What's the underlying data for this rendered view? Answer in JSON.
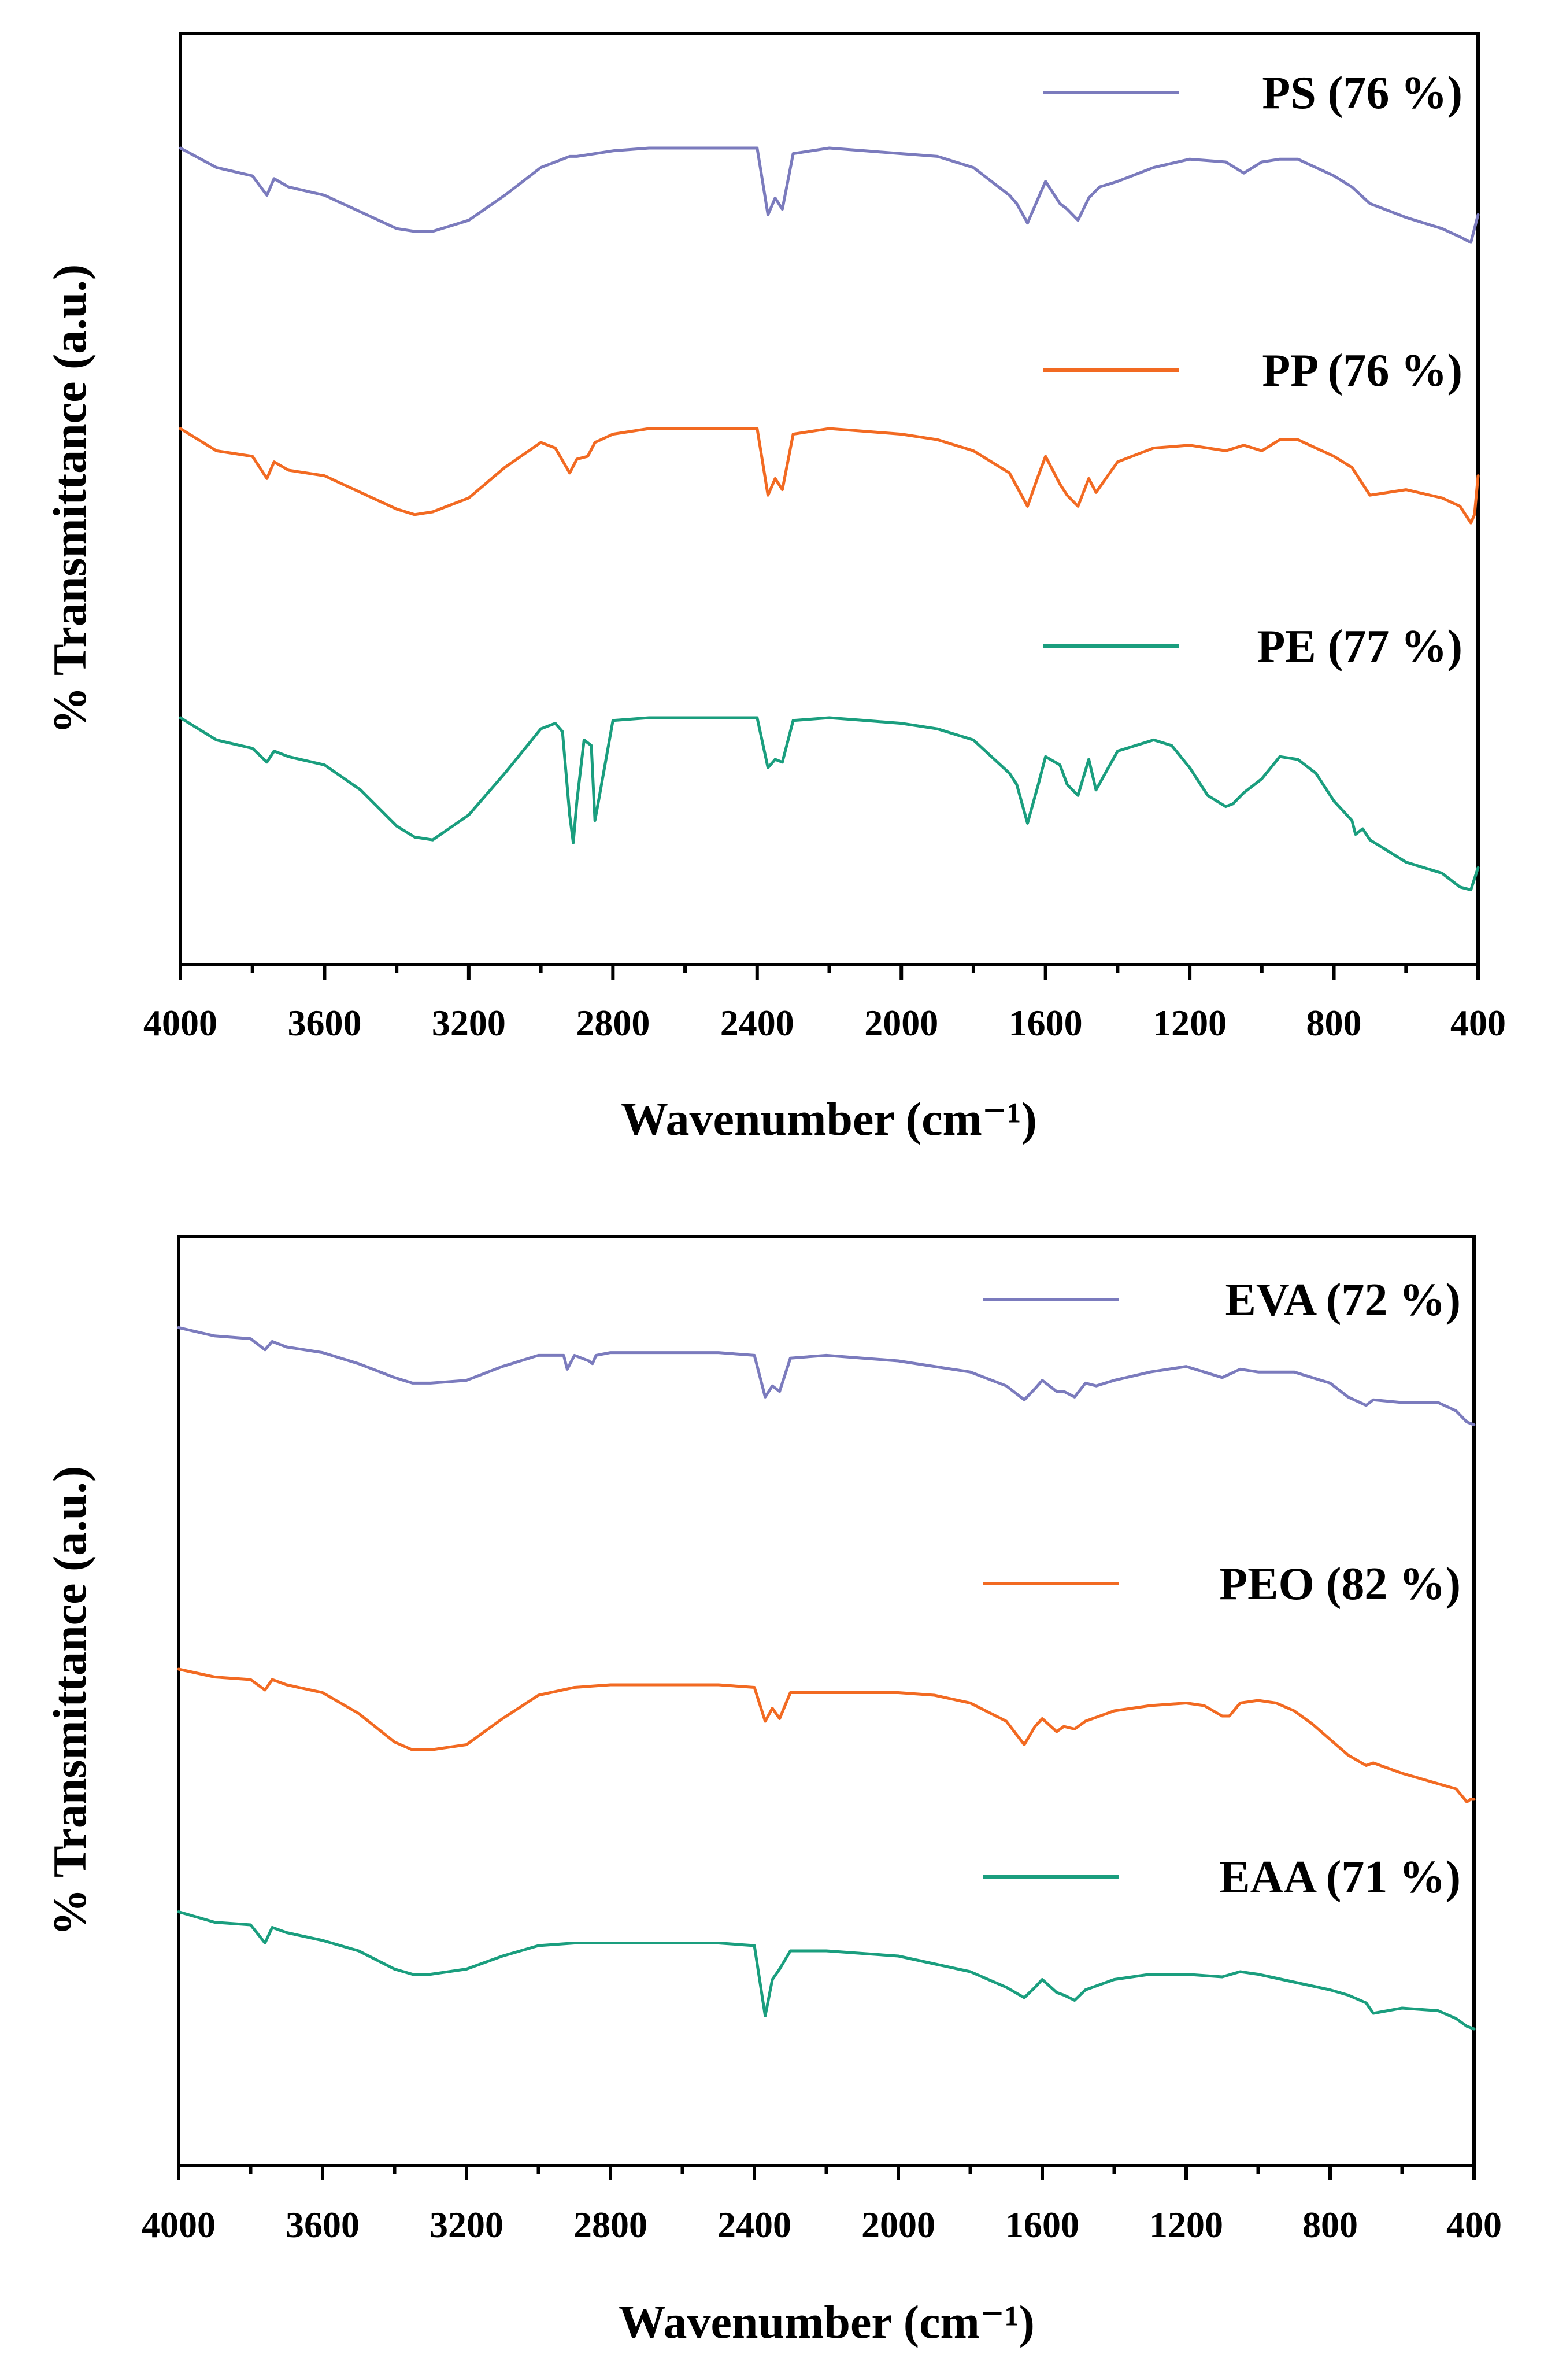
{
  "chart_data": [
    {
      "type": "line",
      "title": "",
      "xlabel": "Wavenumber (cm⁻¹)",
      "ylabel": "% Transmittance (a.u.)",
      "xlim": [
        4000,
        400
      ],
      "x_reversed": true,
      "y_ticks_shown": false,
      "grid": false,
      "legend_position": "right, beside each trace",
      "x_ticks": [
        "4000",
        "3600",
        "3200",
        "2800",
        "2400",
        "2000",
        "1600",
        "1200",
        "800",
        "400"
      ],
      "series": [
        {
          "name": "PS (76 %)",
          "color": "#7b7bbd",
          "x": [
            4000,
            3900,
            3800,
            3760,
            3740,
            3700,
            3600,
            3500,
            3400,
            3350,
            3300,
            3200,
            3100,
            3000,
            2920,
            2900,
            2850,
            2800,
            2700,
            2600,
            2500,
            2400,
            2370,
            2350,
            2330,
            2300,
            2200,
            2100,
            2000,
            1900,
            1800,
            1750,
            1700,
            1680,
            1650,
            1620,
            1600,
            1560,
            1540,
            1510,
            1480,
            1450,
            1400,
            1300,
            1200,
            1100,
            1050,
            1000,
            950,
            900,
            800,
            750,
            700,
            600,
            500,
            450,
            420,
            400
          ],
          "y": [
            8.0,
            7.3,
            7.0,
            6.3,
            6.9,
            6.6,
            6.3,
            5.7,
            5.1,
            5.0,
            5.0,
            5.4,
            6.3,
            7.3,
            7.7,
            7.7,
            7.8,
            7.9,
            8.0,
            8.0,
            8.0,
            8.0,
            5.6,
            6.2,
            5.8,
            7.8,
            8.0,
            7.9,
            7.8,
            7.7,
            7.3,
            6.8,
            6.3,
            6.0,
            5.3,
            6.2,
            6.8,
            6.0,
            5.8,
            5.4,
            6.2,
            6.6,
            6.8,
            7.3,
            7.6,
            7.5,
            7.1,
            7.5,
            7.6,
            7.6,
            7.0,
            6.6,
            6.0,
            5.5,
            5.1,
            4.8,
            4.6,
            5.6
          ]
        },
        {
          "name": "PP (76 %)",
          "color": "#f26a22",
          "x": [
            4000,
            3900,
            3800,
            3760,
            3740,
            3700,
            3600,
            3500,
            3400,
            3350,
            3300,
            3200,
            3100,
            3000,
            2960,
            2920,
            2900,
            2870,
            2850,
            2800,
            2700,
            2600,
            2500,
            2400,
            2370,
            2350,
            2330,
            2300,
            2200,
            2100,
            2000,
            1900,
            1800,
            1700,
            1650,
            1620,
            1600,
            1560,
            1540,
            1510,
            1480,
            1460,
            1400,
            1300,
            1200,
            1100,
            1050,
            1000,
            950,
            900,
            800,
            750,
            700,
            600,
            500,
            450,
            420,
            410,
            400
          ],
          "y": [
            8.0,
            7.2,
            7.0,
            6.2,
            6.8,
            6.5,
            6.3,
            5.7,
            5.1,
            4.9,
            5.0,
            5.5,
            6.6,
            7.5,
            7.3,
            6.4,
            6.9,
            7.0,
            7.5,
            7.8,
            8.0,
            8.0,
            8.0,
            8.0,
            5.6,
            6.2,
            5.8,
            7.8,
            8.0,
            7.9,
            7.8,
            7.6,
            7.2,
            6.4,
            5.2,
            6.3,
            7.0,
            6.0,
            5.6,
            5.2,
            6.2,
            5.7,
            6.8,
            7.3,
            7.4,
            7.2,
            7.4,
            7.2,
            7.6,
            7.6,
            7.0,
            6.6,
            5.6,
            5.8,
            5.5,
            5.2,
            4.6,
            4.9,
            6.3
          ]
        },
        {
          "name": "PE (77 %)",
          "color": "#1a9e7e",
          "x": [
            4000,
            3900,
            3800,
            3760,
            3740,
            3700,
            3600,
            3500,
            3400,
            3350,
            3300,
            3200,
            3100,
            3000,
            2960,
            2940,
            2920,
            2910,
            2900,
            2880,
            2860,
            2850,
            2840,
            2800,
            2700,
            2600,
            2500,
            2400,
            2370,
            2350,
            2330,
            2300,
            2200,
            2100,
            2000,
            1900,
            1800,
            1750,
            1700,
            1680,
            1650,
            1620,
            1600,
            1560,
            1540,
            1510,
            1480,
            1460,
            1400,
            1300,
            1250,
            1200,
            1150,
            1100,
            1080,
            1050,
            1000,
            950,
            900,
            850,
            800,
            750,
            740,
            720,
            700,
            600,
            500,
            450,
            420,
            400
          ],
          "y": [
            8.0,
            7.2,
            6.9,
            6.4,
            6.8,
            6.6,
            6.3,
            5.4,
            4.1,
            3.7,
            3.6,
            4.5,
            6.0,
            7.6,
            7.8,
            7.5,
            4.5,
            3.5,
            5.0,
            7.2,
            7.0,
            4.3,
            5.0,
            7.9,
            8.0,
            8.0,
            8.0,
            8.0,
            6.2,
            6.5,
            6.4,
            7.9,
            8.0,
            7.9,
            7.8,
            7.6,
            7.2,
            6.6,
            6.0,
            5.6,
            4.2,
            5.6,
            6.6,
            6.3,
            5.6,
            5.2,
            6.5,
            5.4,
            6.8,
            7.2,
            7.0,
            6.2,
            5.2,
            4.8,
            4.9,
            5.3,
            5.8,
            6.6,
            6.5,
            6.0,
            5.0,
            4.3,
            3.8,
            4.0,
            3.6,
            2.8,
            2.4,
            1.9,
            1.8,
            2.6
          ]
        }
      ]
    },
    {
      "type": "line",
      "title": "",
      "xlabel": "Wavenumber (cm⁻¹)",
      "ylabel": "% Transmittance (a.u.)",
      "xlim": [
        4000,
        400
      ],
      "x_reversed": true,
      "y_ticks_shown": false,
      "grid": false,
      "legend_position": "right, beside each trace",
      "x_ticks": [
        "4000",
        "3600",
        "3200",
        "2800",
        "2400",
        "2000",
        "1600",
        "1200",
        "800",
        "400"
      ],
      "series": [
        {
          "name": "EVA (72 %)",
          "color": "#7b7bbd",
          "x": [
            4000,
            3900,
            3800,
            3760,
            3740,
            3700,
            3600,
            3500,
            3400,
            3350,
            3300,
            3200,
            3100,
            3000,
            2930,
            2920,
            2900,
            2860,
            2850,
            2840,
            2800,
            2700,
            2600,
            2500,
            2400,
            2370,
            2350,
            2330,
            2300,
            2200,
            2100,
            2000,
            1900,
            1800,
            1700,
            1650,
            1620,
            1600,
            1560,
            1540,
            1510,
            1480,
            1450,
            1400,
            1300,
            1200,
            1100,
            1050,
            1000,
            900,
            800,
            750,
            700,
            680,
            600,
            500,
            450,
            420,
            400
          ],
          "y": [
            9.2,
            8.9,
            8.8,
            8.4,
            8.7,
            8.5,
            8.3,
            7.9,
            7.4,
            7.2,
            7.2,
            7.3,
            7.8,
            8.2,
            8.2,
            7.7,
            8.2,
            8.0,
            7.9,
            8.2,
            8.3,
            8.3,
            8.3,
            8.3,
            8.2,
            6.7,
            7.1,
            6.9,
            8.1,
            8.2,
            8.1,
            8.0,
            7.8,
            7.6,
            7.1,
            6.6,
            7.0,
            7.3,
            6.9,
            6.9,
            6.7,
            7.2,
            7.1,
            7.3,
            7.6,
            7.8,
            7.4,
            7.7,
            7.6,
            7.6,
            7.2,
            6.7,
            6.4,
            6.6,
            6.5,
            6.5,
            6.2,
            5.8,
            5.7
          ]
        },
        {
          "name": "PEO (82 %)",
          "color": "#f26a22",
          "x": [
            4000,
            3900,
            3800,
            3760,
            3740,
            3700,
            3600,
            3500,
            3400,
            3350,
            3300,
            3200,
            3100,
            3000,
            2900,
            2800,
            2700,
            2600,
            2500,
            2400,
            2370,
            2350,
            2330,
            2300,
            2200,
            2100,
            2000,
            1900,
            1800,
            1700,
            1650,
            1620,
            1600,
            1560,
            1540,
            1510,
            1480,
            1400,
            1300,
            1200,
            1150,
            1100,
            1080,
            1050,
            1000,
            950,
            900,
            850,
            800,
            750,
            700,
            680,
            600,
            500,
            450,
            420,
            410,
            400
          ],
          "y": [
            9.2,
            8.9,
            8.8,
            8.4,
            8.8,
            8.6,
            8.3,
            7.5,
            6.4,
            6.1,
            6.1,
            6.3,
            7.3,
            8.2,
            8.5,
            8.6,
            8.6,
            8.6,
            8.6,
            8.5,
            7.2,
            7.7,
            7.3,
            8.3,
            8.3,
            8.3,
            8.3,
            8.2,
            7.9,
            7.2,
            6.3,
            7.0,
            7.3,
            6.8,
            7.0,
            6.9,
            7.2,
            7.6,
            7.8,
            7.9,
            7.8,
            7.4,
            7.4,
            7.9,
            8.0,
            7.9,
            7.6,
            7.1,
            6.5,
            5.9,
            5.5,
            5.6,
            5.2,
            4.8,
            4.6,
            4.1,
            4.2,
            4.2
          ]
        },
        {
          "name": "EAA (71 %)",
          "color": "#1a9e7e",
          "x": [
            4000,
            3900,
            3800,
            3760,
            3740,
            3700,
            3600,
            3500,
            3400,
            3350,
            3300,
            3200,
            3100,
            3000,
            2900,
            2800,
            2700,
            2600,
            2500,
            2400,
            2370,
            2350,
            2330,
            2300,
            2200,
            2100,
            2000,
            1900,
            1800,
            1700,
            1650,
            1620,
            1600,
            1560,
            1540,
            1510,
            1480,
            1400,
            1300,
            1200,
            1100,
            1050,
            1000,
            900,
            800,
            750,
            700,
            680,
            600,
            500,
            450,
            420,
            400
          ],
          "y": [
            9.5,
            9.1,
            9.0,
            8.3,
            8.9,
            8.7,
            8.4,
            8.0,
            7.3,
            7.1,
            7.1,
            7.3,
            7.8,
            8.2,
            8.3,
            8.3,
            8.3,
            8.3,
            8.3,
            8.2,
            5.5,
            6.9,
            7.3,
            8.0,
            8.0,
            7.9,
            7.8,
            7.5,
            7.2,
            6.6,
            6.2,
            6.6,
            6.9,
            6.4,
            6.3,
            6.1,
            6.5,
            6.9,
            7.1,
            7.1,
            7.0,
            7.2,
            7.1,
            6.8,
            6.5,
            6.3,
            6.0,
            5.6,
            5.8,
            5.7,
            5.4,
            5.1,
            5.0
          ]
        }
      ]
    }
  ]
}
